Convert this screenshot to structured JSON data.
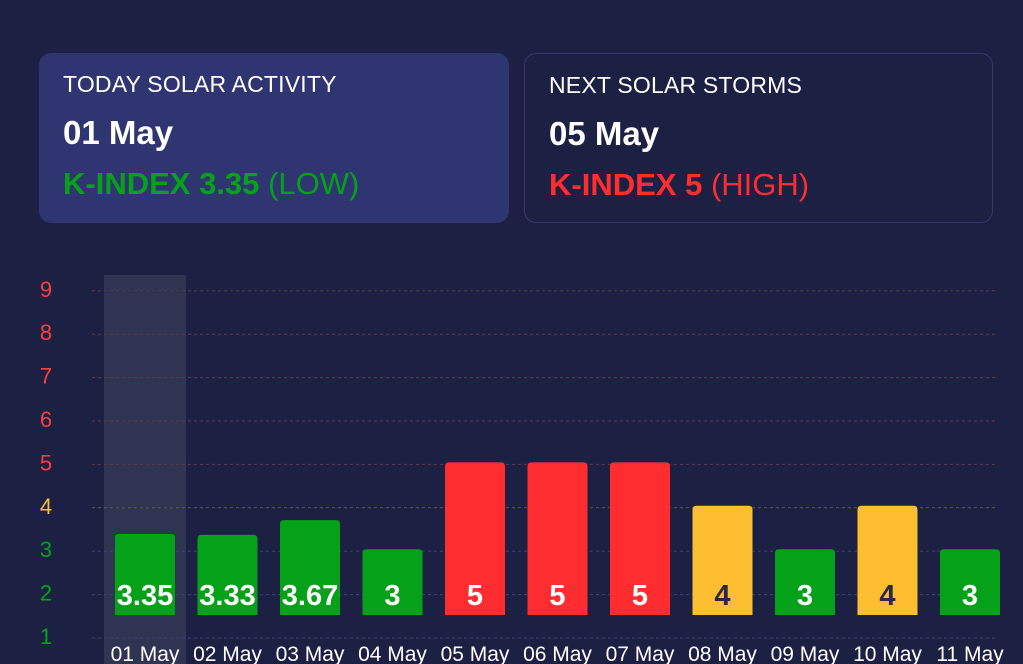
{
  "today_card": {
    "heading": "TODAY SOLAR ACTIVITY",
    "date": "01 May",
    "kindex_label": "K-INDEX 3.35",
    "level": "(LOW)",
    "color": "#05a219"
  },
  "next_card": {
    "heading": "NEXT SOLAR STORMS",
    "date": "05 May",
    "kindex_label": "K-INDEX 5",
    "level": "(HIGH)",
    "color": "#ff2d2f"
  },
  "chart_data": {
    "type": "bar",
    "categories": [
      "01 May",
      "02 May",
      "03 May",
      "04 May",
      "05 May",
      "06 May",
      "07 May",
      "08 May",
      "09 May",
      "10 May",
      "11 May"
    ],
    "values": [
      3.35,
      3.33,
      3.67,
      3,
      5,
      5,
      5,
      4,
      3,
      4,
      3
    ],
    "value_labels": [
      "3.35",
      "3.33",
      "3.67",
      "3",
      "5",
      "5",
      "5",
      "4",
      "3",
      "4",
      "3"
    ],
    "y_ticks": [
      "1",
      "2",
      "3",
      "4",
      "5",
      "6",
      "7",
      "8",
      "9"
    ],
    "highlighted_category": "01 May",
    "grid": true,
    "colors": {
      "low": "#05a219",
      "moderate": "#fdbf31",
      "high": "#ff2d2f",
      "tick_high": "#ff3d3d",
      "tick_moderate": "#fdbf31",
      "tick_low": "#05a219",
      "grid_high": "#6a3448",
      "grid_moderate": "#5f5a3a",
      "grid_low": "#3a4470"
    }
  }
}
